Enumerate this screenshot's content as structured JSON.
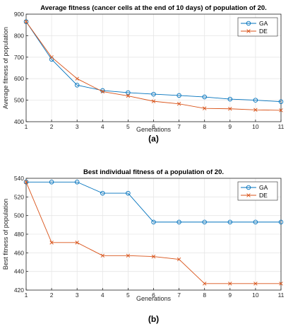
{
  "chart_data": [
    {
      "type": "line",
      "title": "Average fitness (cancer cells at the end of 10 days) of population of 20.",
      "xlabel": "Generations",
      "ylabel": "Average fitness of population",
      "panel_label": "(a)",
      "x": [
        1,
        2,
        3,
        4,
        5,
        6,
        7,
        8,
        9,
        10,
        11
      ],
      "xlim": [
        1,
        11
      ],
      "ylim": [
        400,
        900
      ],
      "yticks": [
        400,
        500,
        600,
        700,
        800,
        900
      ],
      "grid": true,
      "legend_position": "top-right",
      "series": [
        {
          "name": "GA",
          "color": "#0072BD",
          "marker": "circle",
          "values": [
            865,
            690,
            570,
            545,
            535,
            528,
            522,
            515,
            505,
            500,
            493
          ]
        },
        {
          "name": "DE",
          "color": "#D95319",
          "marker": "x",
          "values": [
            865,
            700,
            600,
            540,
            520,
            495,
            483,
            462,
            460,
            455,
            453
          ]
        }
      ]
    },
    {
      "type": "line",
      "title": "Best individual fitness of a population of 20.",
      "xlabel": "Generations",
      "ylabel": "Best fitness of population",
      "panel_label": "(b)",
      "x": [
        1,
        2,
        3,
        4,
        5,
        6,
        7,
        8,
        9,
        10,
        11
      ],
      "xlim": [
        1,
        11
      ],
      "ylim": [
        420,
        540
      ],
      "yticks": [
        420,
        440,
        460,
        480,
        500,
        520,
        540
      ],
      "grid": true,
      "legend_position": "top-right",
      "series": [
        {
          "name": "GA",
          "color": "#0072BD",
          "marker": "circle",
          "values": [
            536,
            536,
            536,
            524,
            524,
            493,
            493,
            493,
            493,
            493,
            493
          ]
        },
        {
          "name": "DE",
          "color": "#D95319",
          "marker": "x",
          "values": [
            536,
            471,
            471,
            457,
            457,
            456,
            453,
            427,
            427,
            427,
            427
          ]
        }
      ]
    }
  ]
}
